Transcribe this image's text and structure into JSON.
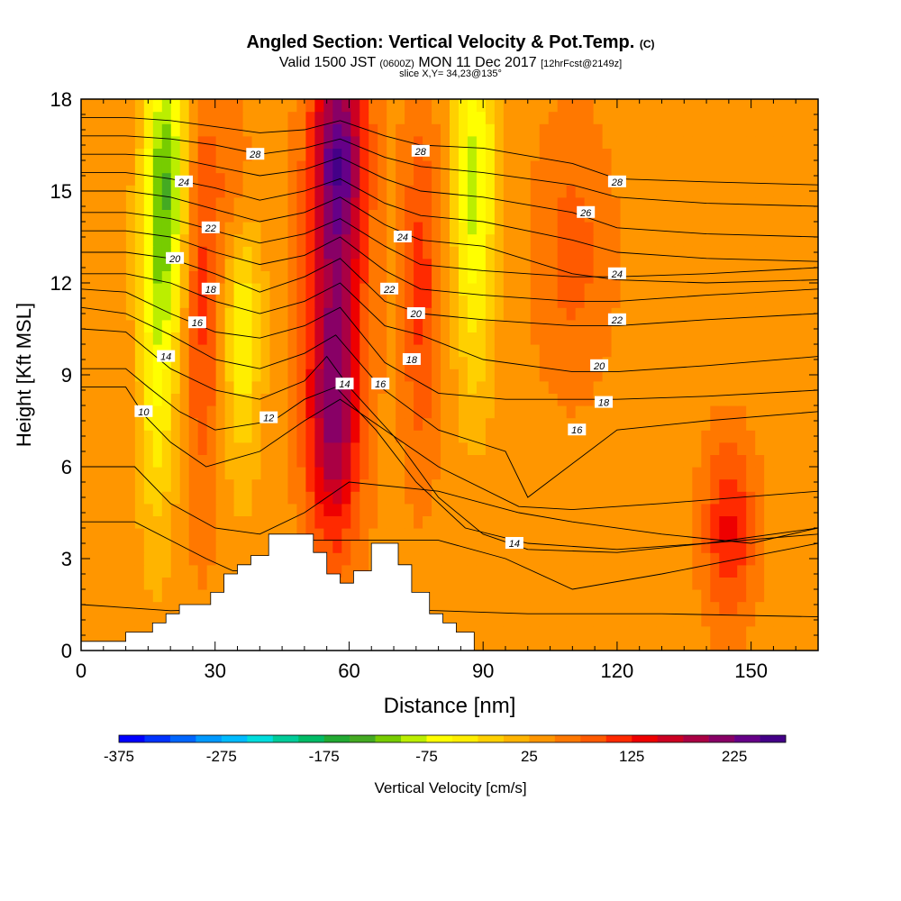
{
  "title": {
    "main": "Angled Section: Vertical Velocity & Pot.Temp.",
    "main_suffix": "(C)",
    "valid_prefix": "Valid 1500 JST",
    "valid_zulu": "(0600Z)",
    "valid_date": "MON 11 Dec 2017",
    "valid_fcst": "[12hrFcst@2149z]",
    "slice": "slice X,Y= 34,23@135°"
  },
  "chart_data": {
    "type": "heatmap",
    "xlabel": "Distance [nm]",
    "ylabel": "Height [Kft MSL]",
    "xlim": [
      0,
      165
    ],
    "ylim": [
      0,
      18
    ],
    "x_ticks": [
      0,
      30,
      60,
      90,
      120,
      150
    ],
    "y_ticks": [
      0,
      3,
      6,
      9,
      12,
      15,
      18
    ],
    "colorbar": {
      "label": "Vertical Velocity [cm/s]",
      "min": -375,
      "max": 325,
      "step": 25,
      "tick_labels": [
        "-375",
        "-275",
        "-175",
        "-75",
        "25",
        "125",
        "225"
      ],
      "tick_values": [
        -375,
        -275,
        -175,
        -75,
        25,
        125,
        225
      ],
      "colors": [
        "#0000ff",
        "#0033ff",
        "#0066ff",
        "#0099ff",
        "#00bbff",
        "#00dddd",
        "#00cc99",
        "#00bb66",
        "#22aa33",
        "#44aa22",
        "#77cc00",
        "#bbee00",
        "#ffff00",
        "#ffee00",
        "#ffd000",
        "#ffb400",
        "#ff9600",
        "#ff7800",
        "#ff5a00",
        "#ff2a00",
        "#ee0000",
        "#cc0022",
        "#aa0044",
        "#880066",
        "#660088",
        "#440088"
      ]
    },
    "base_velocity": 40,
    "velocity_bands": [
      {
        "x": 19,
        "y": 15.5,
        "sx": 3.5,
        "sy": 3.5,
        "v": -150
      },
      {
        "x": 17,
        "y": 9,
        "sx": 3,
        "sy": 4,
        "v": -80
      },
      {
        "x": 36,
        "y": 11,
        "sx": 3,
        "sy": 3.5,
        "v": -90
      },
      {
        "x": 35,
        "y": 15,
        "sx": 3,
        "sy": 2,
        "v": 60
      },
      {
        "x": 57,
        "y": 12,
        "sx": 4.5,
        "sy": 5,
        "v": 150
      },
      {
        "x": 58,
        "y": 16.5,
        "sx": 4,
        "sy": 2,
        "v": 110
      },
      {
        "x": 56,
        "y": 7,
        "sx": 4,
        "sy": 2.5,
        "v": 80
      },
      {
        "x": 88,
        "y": 16,
        "sx": 3.5,
        "sy": 3,
        "v": -110
      },
      {
        "x": 88,
        "y": 11,
        "sx": 3,
        "sy": 3,
        "v": -50
      },
      {
        "x": 76,
        "y": 12,
        "sx": 3,
        "sy": 4,
        "v": 70
      },
      {
        "x": 27,
        "y": 12,
        "sx": 3,
        "sy": 5,
        "v": 70
      },
      {
        "x": 145,
        "y": 4,
        "sx": 4,
        "sy": 2,
        "v": 90
      },
      {
        "x": 110,
        "y": 13,
        "sx": 6,
        "sy": 3,
        "v": 45
      }
    ],
    "terrain": {
      "x": [
        0,
        10,
        10,
        16,
        16,
        19,
        19,
        22,
        22,
        29,
        29,
        32,
        32,
        35,
        35,
        38,
        38,
        42,
        42,
        52,
        52,
        55,
        55,
        58,
        58,
        61,
        61,
        65,
        65,
        71,
        71,
        74,
        74,
        78,
        78,
        81,
        81,
        84,
        84,
        88,
        88
      ],
      "y": [
        0.3,
        0.3,
        0.6,
        0.6,
        0.9,
        0.9,
        1.2,
        1.2,
        1.5,
        1.5,
        1.9,
        1.9,
        2.5,
        2.5,
        2.8,
        2.8,
        3.1,
        3.1,
        3.8,
        3.8,
        3.2,
        3.2,
        2.5,
        2.5,
        2.2,
        2.2,
        2.6,
        2.6,
        3.5,
        3.5,
        2.8,
        2.8,
        1.9,
        1.9,
        1.2,
        1.2,
        0.9,
        0.9,
        0.6,
        0.6,
        0.3
      ]
    },
    "isotherms": [
      {
        "level": 2,
        "x": [
          0,
          20,
          50,
          80,
          100,
          130,
          165
        ],
        "y": [
          1.5,
          1.3,
          1.4,
          1.3,
          1.2,
          1.2,
          1.1
        ]
      },
      {
        "level": 4,
        "x": [
          0,
          12,
          20,
          28,
          34,
          42,
          50,
          80,
          95,
          110,
          130,
          165
        ],
        "y": [
          4.2,
          4.2,
          3.6,
          3.0,
          2.6,
          2.6,
          3.6,
          3.6,
          3.0,
          2.0,
          2.5,
          3.5
        ]
      },
      {
        "level": 6,
        "x": [
          0,
          12,
          20,
          30,
          40,
          50,
          60,
          80,
          98,
          110,
          130,
          150,
          165
        ],
        "y": [
          6.0,
          6.0,
          4.8,
          4.0,
          3.8,
          4.5,
          5.5,
          5.2,
          4.5,
          4.2,
          3.8,
          3.5,
          4.0
        ]
      },
      {
        "level": 10,
        "x": [
          0,
          10,
          14,
          20,
          28,
          40,
          50,
          58,
          70,
          80,
          98,
          110,
          130,
          165
        ],
        "y": [
          8.6,
          8.6,
          7.7,
          6.8,
          6.0,
          6.5,
          7.5,
          8.2,
          7.0,
          6.0,
          4.7,
          4.6,
          4.8,
          5.2
        ]
      },
      {
        "level": 12,
        "x": [
          0,
          10,
          15,
          22,
          30,
          43,
          50,
          57,
          66,
          75,
          86,
          100,
          120,
          140,
          165
        ],
        "y": [
          9.2,
          9.2,
          8.6,
          7.8,
          7.2,
          7.5,
          8.2,
          8.6,
          7.2,
          5.5,
          4.0,
          3.5,
          3.3,
          3.5,
          3.8
        ]
      },
      {
        "level": 14,
        "x": [
          0,
          10,
          20,
          30,
          40,
          50,
          55,
          60,
          70,
          80,
          90,
          100,
          120,
          140,
          165
        ],
        "y": [
          10.5,
          10.4,
          9.2,
          8.5,
          8.2,
          8.8,
          9.6,
          8.6,
          7.0,
          5.0,
          3.8,
          3.3,
          3.2,
          3.5,
          4.0
        ]
      },
      {
        "level": 16,
        "x": [
          0,
          10,
          20,
          30,
          40,
          50,
          57,
          67,
          80,
          95,
          100,
          120,
          140,
          165
        ],
        "y": [
          11.2,
          11.0,
          10.3,
          9.5,
          9.2,
          9.7,
          10.3,
          8.6,
          7.2,
          6.5,
          5.0,
          7.2,
          7.5,
          7.8
        ]
      },
      {
        "level": 18,
        "x": [
          0,
          10,
          20,
          30,
          40,
          50,
          58,
          68,
          80,
          95,
          110,
          120,
          140,
          165
        ],
        "y": [
          11.8,
          11.7,
          11.0,
          10.4,
          10.2,
          10.6,
          11.2,
          9.4,
          8.4,
          8.2,
          8.2,
          8.2,
          8.3,
          8.5
        ]
      },
      {
        "level": 20,
        "x": [
          0,
          10,
          20,
          30,
          40,
          50,
          58,
          68,
          76,
          90,
          110,
          120,
          140,
          165
        ],
        "y": [
          12.3,
          12.3,
          12.0,
          11.4,
          11.0,
          11.4,
          12.0,
          10.6,
          10.3,
          9.5,
          9.1,
          9.1,
          9.3,
          9.6
        ]
      },
      {
        "level": 22,
        "x": [
          0,
          10,
          20,
          30,
          40,
          50,
          58,
          68,
          76,
          90,
          110,
          120,
          140,
          165
        ],
        "y": [
          13.0,
          13.0,
          12.8,
          12.3,
          11.7,
          12.2,
          12.8,
          11.4,
          11.0,
          10.8,
          10.6,
          10.6,
          10.8,
          11.0
        ]
      },
      {
        "level": 22.5,
        "x": [
          0,
          10,
          20,
          30,
          40,
          50,
          58,
          68,
          76,
          90,
          110,
          120,
          140,
          165
        ],
        "y": [
          13.7,
          13.7,
          13.5,
          13.0,
          12.6,
          12.9,
          13.5,
          12.4,
          11.8,
          11.6,
          11.4,
          11.4,
          11.6,
          11.8
        ]
      },
      {
        "level": 23,
        "x": [
          0,
          10,
          20,
          30,
          40,
          50,
          58,
          68,
          76,
          90,
          110,
          120,
          140,
          165
        ],
        "y": [
          14.3,
          14.3,
          14.1,
          13.7,
          13.3,
          13.6,
          14.1,
          13.2,
          12.6,
          12.4,
          12.2,
          12.2,
          12.3,
          12.5
        ]
      },
      {
        "level": 24,
        "x": [
          0,
          10,
          20,
          30,
          40,
          50,
          58,
          68,
          76,
          90,
          110,
          120,
          140,
          165
        ],
        "y": [
          15.0,
          15.0,
          14.8,
          14.4,
          14.0,
          14.3,
          14.8,
          13.9,
          13.4,
          13.2,
          12.3,
          12.1,
          12.0,
          12.1
        ]
      },
      {
        "level": 25,
        "x": [
          0,
          10,
          20,
          30,
          40,
          50,
          58,
          68,
          76,
          90,
          110,
          120,
          140,
          165
        ],
        "y": [
          15.6,
          15.6,
          15.4,
          15.1,
          14.7,
          15.0,
          15.4,
          14.6,
          14.2,
          14.0,
          13.4,
          13.0,
          12.8,
          12.7
        ]
      },
      {
        "level": 26,
        "x": [
          0,
          10,
          20,
          30,
          40,
          50,
          58,
          68,
          76,
          90,
          110,
          120,
          140,
          165
        ],
        "y": [
          16.2,
          16.2,
          16.1,
          15.8,
          15.5,
          15.7,
          16.1,
          15.4,
          15.0,
          14.8,
          14.3,
          13.8,
          13.6,
          13.5
        ]
      },
      {
        "level": 27,
        "x": [
          0,
          10,
          20,
          30,
          40,
          50,
          58,
          68,
          76,
          90,
          110,
          120,
          140,
          165
        ],
        "y": [
          16.8,
          16.8,
          16.7,
          16.5,
          16.2,
          16.4,
          16.7,
          16.1,
          15.8,
          15.6,
          15.2,
          14.8,
          14.6,
          14.5
        ]
      },
      {
        "level": 28,
        "x": [
          0,
          10,
          20,
          30,
          40,
          50,
          58,
          68,
          76,
          90,
          110,
          120,
          140,
          165
        ],
        "y": [
          17.4,
          17.4,
          17.3,
          17.1,
          16.9,
          17.0,
          17.3,
          16.8,
          16.5,
          16.4,
          15.9,
          15.4,
          15.3,
          15.2
        ]
      }
    ],
    "contour_labels": [
      {
        "text": "28",
        "x": 39,
        "y": 16.2
      },
      {
        "text": "28",
        "x": 76,
        "y": 16.3
      },
      {
        "text": "28",
        "x": 120,
        "y": 15.3
      },
      {
        "text": "24",
        "x": 23,
        "y": 15.3
      },
      {
        "text": "26",
        "x": 113,
        "y": 14.3
      },
      {
        "text": "22",
        "x": 29,
        "y": 13.8
      },
      {
        "text": "24",
        "x": 72,
        "y": 13.5
      },
      {
        "text": "20",
        "x": 21,
        "y": 12.8
      },
      {
        "text": "24",
        "x": 120,
        "y": 12.3
      },
      {
        "text": "18",
        "x": 29,
        "y": 11.8
      },
      {
        "text": "22",
        "x": 69,
        "y": 11.8
      },
      {
        "text": "20",
        "x": 75,
        "y": 11.0
      },
      {
        "text": "22",
        "x": 120,
        "y": 10.8
      },
      {
        "text": "16",
        "x": 26,
        "y": 10.7
      },
      {
        "text": "14",
        "x": 19,
        "y": 9.6
      },
      {
        "text": "18",
        "x": 74,
        "y": 9.5
      },
      {
        "text": "20",
        "x": 116,
        "y": 9.3
      },
      {
        "text": "14",
        "x": 59,
        "y": 8.7
      },
      {
        "text": "16",
        "x": 67,
        "y": 8.7
      },
      {
        "text": "18",
        "x": 117,
        "y": 8.1
      },
      {
        "text": "10",
        "x": 14,
        "y": 7.8
      },
      {
        "text": "12",
        "x": 42,
        "y": 7.6
      },
      {
        "text": "16",
        "x": 111,
        "y": 7.2
      },
      {
        "text": "14",
        "x": 97,
        "y": 3.5
      }
    ]
  }
}
